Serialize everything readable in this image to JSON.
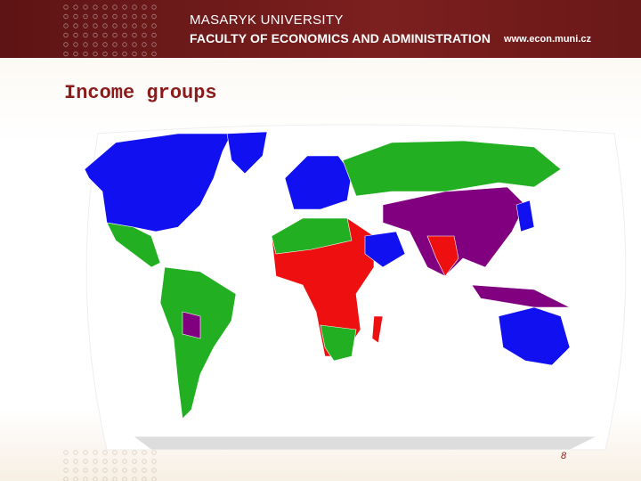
{
  "header": {
    "university": "MASARYK UNIVERSITY",
    "faculty": "FACULTY OF ECONOMICS AND ADMINISTRATION",
    "url": "www.econ.muni.cz"
  },
  "title": "Income groups",
  "page_number": "8"
}
